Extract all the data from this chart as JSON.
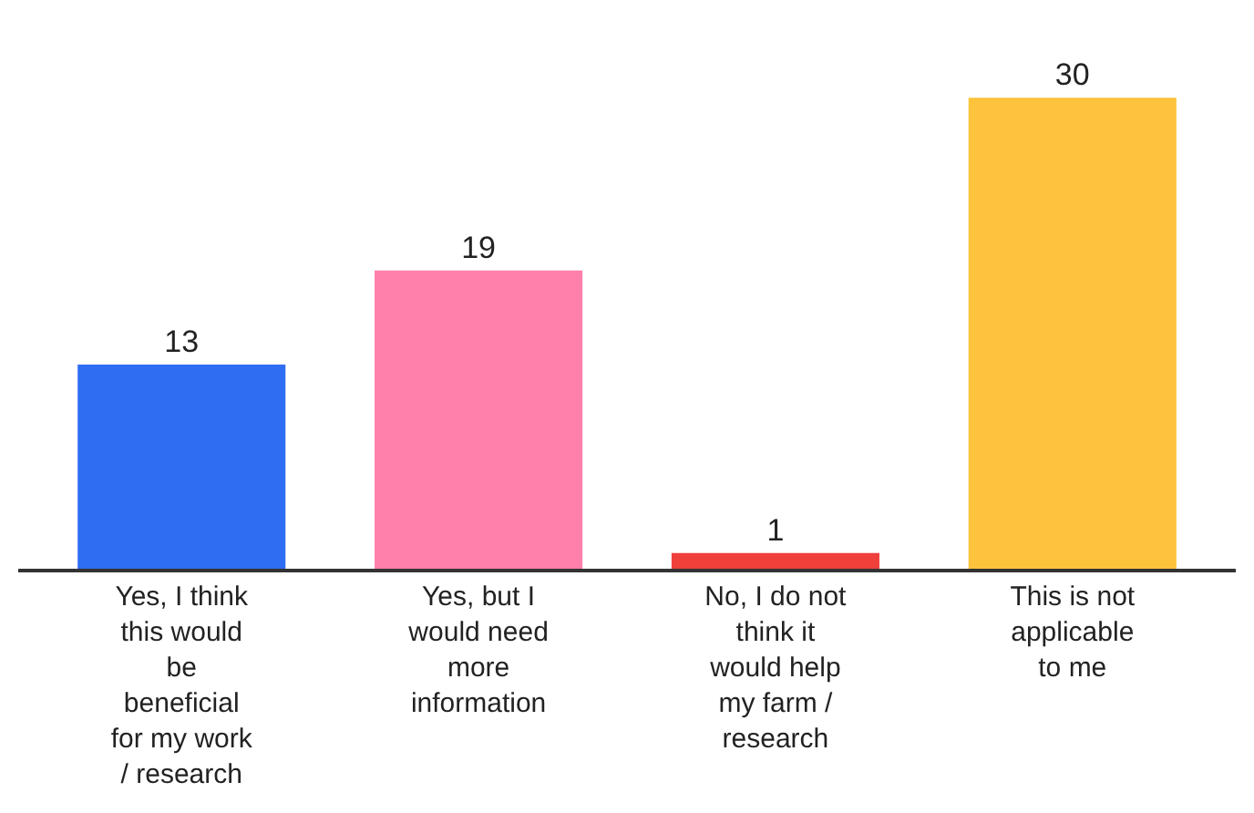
{
  "chart_data": {
    "type": "bar",
    "data_labels": true,
    "categories": [
      "Yes, I think this would be beneficial for my work / research",
      "Yes, but I would need more information",
      "No, I do not think it would help my farm / research",
      "This is not applicable to me"
    ],
    "values": [
      13,
      19,
      1,
      30
    ],
    "colors": [
      "#2f6ef2",
      "#ff80aa",
      "#f0403c",
      "#fec33c"
    ]
  }
}
